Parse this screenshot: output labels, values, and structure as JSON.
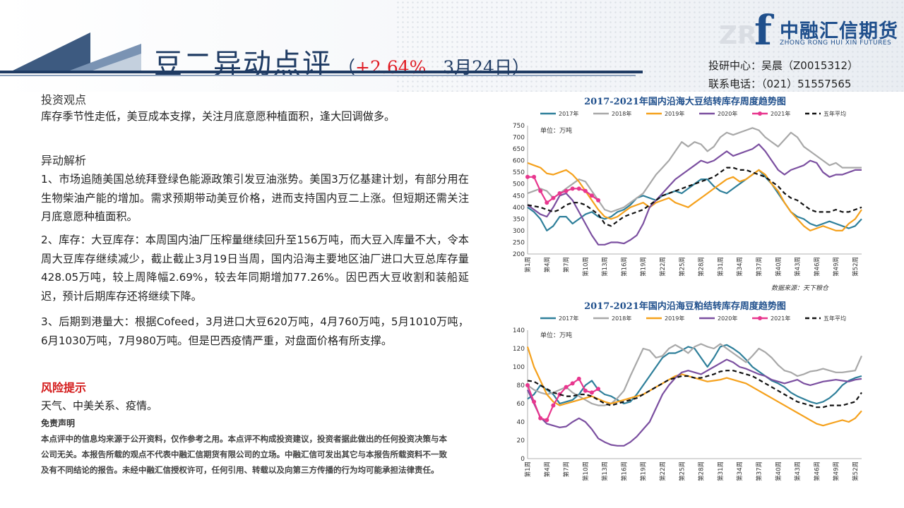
{
  "header": {
    "title": "豆二异动点评",
    "sub_open": "（",
    "change": "+2.64%",
    "date": "3月24日",
    "sub_close": "）"
  },
  "logo": {
    "watermark": "ZR",
    "cn": "中融汇信期货",
    "en": "ZHONG RONG HUI XIN FUTURES"
  },
  "contact": {
    "analyst": "投研中心：吴晨（Z0015312）",
    "phone": "联系电话：（021）51557565"
  },
  "content": {
    "view_title": "投资观点",
    "view_text": "库存季节性走低，美豆成本支撑，关注月底意愿种植面积，逢大回调做多。",
    "analysis_title": "异动解析",
    "points": [
      "1、市场追随美国总统拜登绿色能源政策引发豆油涨势。美国3万亿基建计划，有部分用在生物柴油产能的增加。需求预期带动美豆价格，进而支持国内豆二上涨。但短期还需关注月底意愿种植面积。",
      "2、库存：大豆库存：本周国内油厂压榨量继续回升至156万吨，而大豆入库量不大，令本周大豆库存继续减少，截止截止3月19日当周，国内沿海主要地区油厂进口大豆总库存量428.05万吨，较上周降幅2.69%，较去年同期增加77.26%。因巴西大豆收割和装船延迟，预计后期库存还将继续下降。",
      "3、后期到港量大：根据Cofeed，3月进口大豆620万吨，4月760万吨，5月1010万吨，6月1030万吨，7月980万吨。但是巴西疫情严重，对盘面价格有所支撑。"
    ],
    "risk_title": "风险提示",
    "risk_text": "天气、中美关系、疫情。",
    "disclaimer_title": "免责声明",
    "disclaimer_text": "本点评中的信息均来源于公开资料，仅作参考之用。本点评不构成投资建议，投资者据此做出的任何投资决策与本公司无关。本报告所载的观点不代表中融汇信期货有限公司的立场。中融汇信可发出其它与本报告所载资料不一致及有不同结论的报告。未经中融汇信授权许可，任何引用、转载以及向第三方传播的行为均可能承担法律责任。"
  },
  "chart_data": [
    {
      "type": "line",
      "title": "2017-2021年国内沿海大豆结转库存周度趋势图",
      "unit_label": "单位：万吨",
      "source": "数据来源：天下粮仓",
      "ylim": [
        200,
        750
      ],
      "yticks": [
        200,
        250,
        300,
        350,
        400,
        450,
        500,
        550,
        600,
        650,
        700,
        750
      ],
      "x_count": 53,
      "xticks": [
        "第1周",
        "第4周",
        "第7周",
        "第10周",
        "第13周",
        "第16周",
        "第19周",
        "第22周",
        "第25周",
        "第28周",
        "第31周",
        "第34周",
        "第37周",
        "第40周",
        "第43周",
        "第46周",
        "第49周",
        "第52周"
      ],
      "series": [
        {
          "name": "2017年",
          "color": "#2e7f9a",
          "dash": "",
          "markers": false,
          "values": [
            400,
            380,
            350,
            300,
            320,
            360,
            360,
            330,
            350,
            370,
            380,
            360,
            350,
            360,
            380,
            390,
            410,
            440,
            450,
            440,
            430,
            450,
            460,
            470,
            460,
            480,
            500,
            520,
            520,
            490,
            470,
            460,
            480,
            500,
            520,
            540,
            560,
            530,
            500,
            460,
            420,
            380,
            360,
            350,
            330,
            320,
            330,
            340,
            330,
            320,
            310,
            320,
            350
          ]
        },
        {
          "name": "2018年",
          "color": "#a8a8a8",
          "dash": "",
          "markers": false,
          "values": [
            460,
            470,
            480,
            470,
            440,
            460,
            480,
            500,
            520,
            510,
            470,
            430,
            390,
            380,
            390,
            400,
            420,
            440,
            460,
            500,
            540,
            570,
            600,
            640,
            680,
            660,
            680,
            670,
            640,
            660,
            700,
            720,
            710,
            720,
            730,
            740,
            730,
            700,
            680,
            660,
            690,
            720,
            700,
            660,
            640,
            620,
            600,
            580,
            590,
            570,
            570,
            570,
            570
          ]
        },
        {
          "name": "2019年",
          "color": "#f5a11c",
          "dash": "",
          "markers": false,
          "values": [
            590,
            580,
            570,
            545,
            540,
            550,
            560,
            540,
            510,
            470,
            430,
            390,
            360,
            350,
            360,
            380,
            400,
            410,
            420,
            400,
            420,
            430,
            440,
            420,
            410,
            400,
            420,
            440,
            460,
            480,
            500,
            520,
            530,
            510,
            520,
            540,
            560,
            540,
            500,
            470,
            420,
            380,
            350,
            320,
            300,
            310,
            320,
            310,
            300,
            300,
            330,
            350,
            390
          ]
        },
        {
          "name": "2020年",
          "color": "#7b4fa0",
          "dash": "",
          "markers": false,
          "values": [
            410,
            390,
            370,
            360,
            400,
            450,
            460,
            430,
            380,
            330,
            280,
            240,
            240,
            250,
            250,
            245,
            260,
            280,
            330,
            400,
            430,
            460,
            490,
            520,
            540,
            560,
            580,
            600,
            590,
            600,
            620,
            640,
            620,
            630,
            640,
            650,
            670,
            640,
            600,
            560,
            540,
            560,
            570,
            580,
            600,
            590,
            550,
            530,
            540,
            540,
            550,
            560,
            560
          ]
        },
        {
          "name": "2021年",
          "color": "#e8368e",
          "dash": "",
          "markers": true,
          "values": [
            530,
            530,
            470,
            420,
            440,
            460,
            470,
            480,
            480,
            470,
            450,
            430
          ]
        },
        {
          "name": "五年平均",
          "color": "#111111",
          "dash": "6 4",
          "markers": false,
          "values": [
            410,
            405,
            400,
            390,
            380,
            390,
            410,
            420,
            420,
            410,
            390,
            370,
            330,
            320,
            340,
            360,
            370,
            380,
            390,
            410,
            430,
            450,
            460,
            470,
            480,
            490,
            500,
            510,
            520,
            530,
            550,
            570,
            570,
            560,
            560,
            550,
            540,
            530,
            510,
            490,
            460,
            440,
            430,
            410,
            390,
            380,
            380,
            380,
            390,
            380,
            380,
            390,
            400
          ]
        }
      ]
    },
    {
      "type": "line",
      "title": "2017-2021年国内沿海豆粕结转库存周度趋势图",
      "unit_label": "单位：万吨",
      "source": "",
      "ylim": [
        0,
        140
      ],
      "yticks": [
        0,
        20,
        40,
        60,
        80,
        100,
        120,
        140
      ],
      "x_count": 53,
      "xticks": [
        "第1周",
        "第4周",
        "第7周",
        "第10周",
        "第13周",
        "第16周",
        "第19周",
        "第22周",
        "第25周",
        "第28周",
        "第31周",
        "第34周",
        "第37周",
        "第40周",
        "第43周",
        "第46周",
        "第49周",
        "第52周"
      ],
      "series": [
        {
          "name": "2017年",
          "color": "#2e7f9a",
          "dash": "",
          "markers": false,
          "values": [
            65,
            70,
            80,
            75,
            70,
            60,
            62,
            64,
            70,
            80,
            85,
            75,
            70,
            68,
            64,
            60,
            62,
            70,
            80,
            90,
            100,
            110,
            115,
            115,
            118,
            122,
            120,
            110,
            100,
            110,
            122,
            124,
            120,
            115,
            108,
            100,
            95,
            90,
            85,
            82,
            78,
            72,
            68,
            65,
            62,
            60,
            62,
            66,
            72,
            80,
            85,
            88,
            90
          ]
        },
        {
          "name": "2018年",
          "color": "#a8a8a8",
          "dash": "",
          "markers": false,
          "values": [
            80,
            75,
            72,
            70,
            72,
            75,
            78,
            72,
            68,
            64,
            60,
            58,
            58,
            60,
            66,
            74,
            90,
            105,
            120,
            118,
            110,
            112,
            120,
            124,
            120,
            115,
            122,
            125,
            122,
            120,
            125,
            120,
            115,
            110,
            105,
            112,
            120,
            116,
            110,
            102,
            96,
            94,
            90,
            92,
            95,
            96,
            98,
            96,
            94,
            94,
            95,
            96,
            112
          ]
        },
        {
          "name": "2019年",
          "color": "#f5a11c",
          "dash": "",
          "markers": false,
          "values": [
            122,
            100,
            85,
            70,
            62,
            58,
            60,
            62,
            64,
            66,
            68,
            65,
            62,
            60,
            62,
            64,
            66,
            68,
            70,
            74,
            78,
            82,
            86,
            90,
            92,
            90,
            88,
            86,
            84,
            85,
            86,
            88,
            86,
            84,
            82,
            78,
            74,
            70,
            66,
            62,
            58,
            54,
            50,
            46,
            42,
            38,
            36,
            38,
            40,
            42,
            40,
            44,
            52
          ]
        },
        {
          "name": "2020年",
          "color": "#7b4fa0",
          "dash": "",
          "markers": false,
          "values": [
            75,
            60,
            45,
            38,
            36,
            34,
            35,
            40,
            44,
            40,
            32,
            22,
            18,
            15,
            14,
            14,
            18,
            24,
            32,
            40,
            55,
            70,
            80,
            88,
            94,
            96,
            94,
            92,
            96,
            100,
            104,
            108,
            105,
            100,
            98,
            95,
            92,
            90,
            86,
            84,
            82,
            84,
            86,
            82,
            80,
            82,
            84,
            85,
            86,
            85,
            84,
            86,
            87
          ]
        },
        {
          "name": "2021年",
          "color": "#e8368e",
          "dash": "",
          "markers": true,
          "values": [
            80,
            62,
            44,
            42,
            58,
            70,
            78,
            82,
            87,
            74,
            72,
            76
          ]
        },
        {
          "name": "五年平均",
          "color": "#111111",
          "dash": "6 4",
          "markers": false,
          "values": [
            85,
            84,
            80,
            76,
            72,
            70,
            68,
            68,
            70,
            70,
            68,
            64,
            60,
            58,
            60,
            62,
            64,
            66,
            70,
            74,
            78,
            82,
            86,
            88,
            90,
            90,
            88,
            88,
            90,
            92,
            95,
            96,
            96,
            94,
            92,
            90,
            86,
            82,
            78,
            74,
            70,
            66,
            62,
            60,
            58,
            56,
            56,
            58,
            58,
            58,
            60,
            62,
            72
          ]
        }
      ]
    }
  ]
}
